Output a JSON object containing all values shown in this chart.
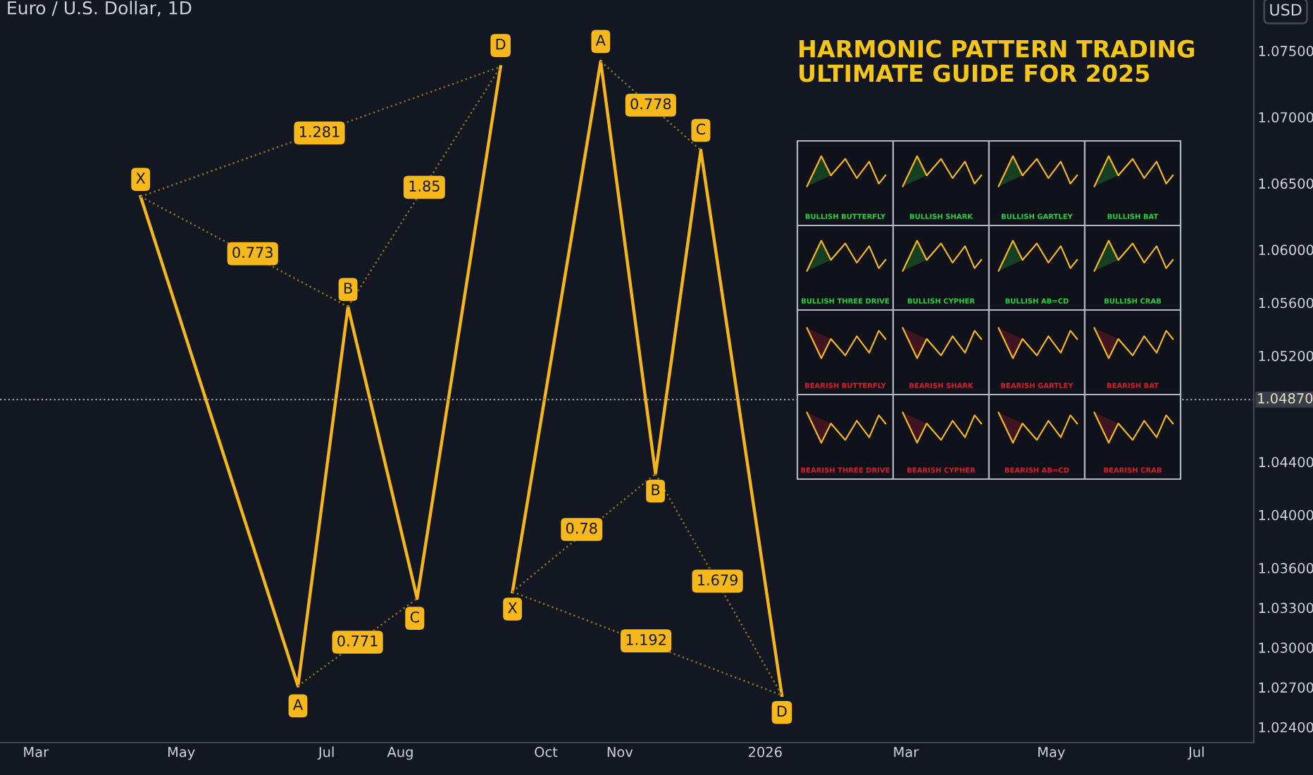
{
  "chart_data": {
    "type": "line",
    "title": "Euro / U.S. Dollar, 1D",
    "ylabel": "USD",
    "xlim": [
      "2025-02-14",
      "2026-07-25"
    ],
    "ylim": [
      1.02283,
      1.07883
    ],
    "xticks": [
      {
        "value": "2025-03-01",
        "label": "Mar"
      },
      {
        "value": "2025-05-01",
        "label": "May"
      },
      {
        "value": "2025-07-01",
        "label": "Jul"
      },
      {
        "value": "2025-08-01",
        "label": "Aug"
      },
      {
        "value": "2025-10-01",
        "label": "Oct"
      },
      {
        "value": "2025-11-01",
        "label": "Nov"
      },
      {
        "value": "2026-01-01",
        "label": "2026"
      },
      {
        "value": "2026-03-01",
        "label": "Mar"
      },
      {
        "value": "2026-05-01",
        "label": "May"
      },
      {
        "value": "2026-07-01",
        "label": "Jul"
      }
    ],
    "yticks": [
      {
        "value": 1.075,
        "label": "1.07500"
      },
      {
        "value": 1.07,
        "label": "1.07000"
      },
      {
        "value": 1.065,
        "label": "1.06500"
      },
      {
        "value": 1.06,
        "label": "1.06000"
      },
      {
        "value": 1.056,
        "label": "1.05600"
      },
      {
        "value": 1.052,
        "label": "1.05200"
      },
      {
        "value": 1.044,
        "label": "1.04400"
      },
      {
        "value": 1.04,
        "label": "1.04000"
      },
      {
        "value": 1.036,
        "label": "1.03600"
      },
      {
        "value": 1.033,
        "label": "1.03300"
      },
      {
        "value": 1.03,
        "label": "1.03000"
      },
      {
        "value": 1.027,
        "label": "1.02700"
      },
      {
        "value": 1.024,
        "label": "1.02400"
      }
    ],
    "grid": false,
    "legend": false,
    "marker": "none",
    "series": [
      {
        "line_style": "solid",
        "color": "#f5b61c",
        "x": [
          "2025-04-14",
          "2025-06-19",
          "2025-07-10",
          "2025-08-08",
          "2025-09-12"
        ],
        "values": [
          1.064,
          1.0271,
          1.0557,
          1.0337,
          1.0738
        ]
      },
      {
        "line_style": "solid",
        "color": "#f5b61c",
        "x": [
          "2025-09-17",
          "2025-10-24",
          "2025-11-16",
          "2025-12-05",
          "2026-01-08"
        ],
        "values": [
          1.0342,
          1.0742,
          1.0431,
          1.0675,
          1.0264
        ]
      },
      {
        "line_style": "dotted",
        "color": "#8a6d1e",
        "x": [
          "2025-04-14",
          "2025-07-10"
        ],
        "values": [
          1.064,
          1.0557
        ]
      },
      {
        "line_style": "dotted",
        "color": "#8a6d1e",
        "x": [
          "2025-06-19",
          "2025-08-08"
        ],
        "values": [
          1.0271,
          1.0337
        ]
      },
      {
        "line_style": "dotted",
        "color": "#8a6d1e",
        "x": [
          "2025-07-10",
          "2025-09-12"
        ],
        "values": [
          1.0557,
          1.0738
        ]
      },
      {
        "line_style": "dotted",
        "color": "#8a6d1e",
        "x": [
          "2025-04-14",
          "2025-09-12"
        ],
        "values": [
          1.064,
          1.0738
        ]
      },
      {
        "line_style": "dotted",
        "color": "#8a6d1e",
        "x": [
          "2025-09-17",
          "2025-11-16"
        ],
        "values": [
          1.0342,
          1.0431
        ]
      },
      {
        "line_style": "dotted",
        "color": "#8a6d1e",
        "x": [
          "2025-10-24",
          "2025-12-05"
        ],
        "values": [
          1.0742,
          1.0675
        ]
      },
      {
        "line_style": "dotted",
        "color": "#8a6d1e",
        "x": [
          "2025-11-16",
          "2026-01-08"
        ],
        "values": [
          1.0431,
          1.0264
        ]
      },
      {
        "line_style": "dotted",
        "color": "#8a6d1e",
        "x": [
          "2025-09-17",
          "2026-01-08"
        ],
        "values": [
          1.0342,
          1.0264
        ]
      }
    ],
    "ref_lines": [
      {
        "axis": "y",
        "value": 1.0487,
        "label": "1.04870",
        "line_style": "dotted",
        "color": "#9598a1"
      }
    ],
    "annotations": [
      "HARMONIC PATTERN TRADING\nULTIMATE GUIDE FOR 2025",
      "BULLISH BUTTERFLY",
      "BULLISH SHARK",
      "BULLISH GARTLEY",
      "BULLISH BAT",
      "BULLISH THREE DRIVE",
      "BULLISH CYPHER",
      "BULLISH AB=CD",
      "BULLISH CRAB",
      "BEARISH BUTTERFLY",
      "BEARISH SHARK",
      "BEARISH GARTLEY",
      "BEARISH BAT",
      "BEARISH THREE DRIVE",
      "BEARISH CYPHER",
      "BEARISH AB=CD",
      "BEARISH CRAB",
      {
        "text": "X",
        "x": "2025-04-14",
        "y": 1.0653
      },
      {
        "text": "A",
        "x": "2025-06-19",
        "y": 1.0256
      },
      {
        "text": "B",
        "x": "2025-07-10",
        "y": 1.057
      },
      {
        "text": "C",
        "x": "2025-08-07",
        "y": 1.0322
      },
      {
        "text": "D",
        "x": "2025-09-12",
        "y": 1.0754
      },
      {
        "text": "X",
        "x": "2025-09-17",
        "y": 1.0329
      },
      {
        "text": "A",
        "x": "2025-10-24",
        "y": 1.0757
      },
      {
        "text": "B",
        "x": "2025-11-16",
        "y": 1.0418
      },
      {
        "text": "C",
        "x": "2025-12-05",
        "y": 1.069
      },
      {
        "text": "D",
        "x": "2026-01-08",
        "y": 1.0251
      },
      {
        "text": "0.773",
        "x": "2025-05-31",
        "y": 1.0597
      },
      {
        "text": "1.281",
        "x": "2025-06-28",
        "y": 1.0688
      },
      {
        "text": "1.85",
        "x": "2025-08-11",
        "y": 1.0647
      },
      {
        "text": "0.771",
        "x": "2025-07-14",
        "y": 1.0304
      },
      {
        "text": "0.778",
        "x": "2025-11-14",
        "y": 1.0709
      },
      {
        "text": "0.78",
        "x": "2025-10-16",
        "y": 1.0389
      },
      {
        "text": "1.679",
        "x": "2025-12-12",
        "y": 1.035
      },
      {
        "text": "1.192",
        "x": "2025-11-12",
        "y": 1.0305
      }
    ]
  }
}
